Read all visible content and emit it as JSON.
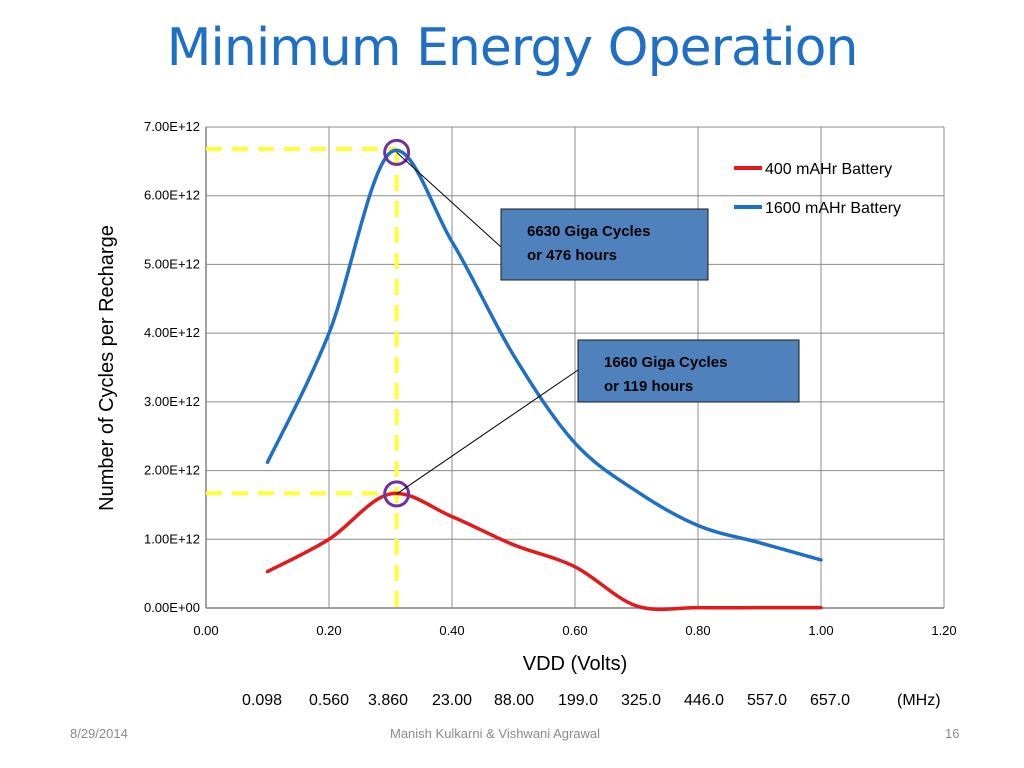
{
  "slide": {
    "title": "Minimum Energy Operation",
    "footer_date": "8/29/2014",
    "footer_authors": "Manish Kulkarni & Vishwani Agrawal",
    "footer_page": "16"
  },
  "frequency_row": {
    "values": [
      "0.098",
      "0.560",
      "3.860",
      "23.00",
      "88.00",
      "199.0",
      "325.0",
      "446.0",
      "557.0",
      "657.0"
    ],
    "unit": "(MHz)"
  },
  "chart_data": {
    "type": "line",
    "title": "",
    "xlabel": "VDD (Volts)",
    "ylabel": "Number of Cycles per Recharge",
    "xlim": [
      0,
      1.2
    ],
    "ylim": [
      0,
      7000000000000.0
    ],
    "x_ticks": [
      "0.00",
      "0.20",
      "0.40",
      "0.60",
      "0.80",
      "1.00",
      "1.20"
    ],
    "y_ticks": [
      "0.00E+00",
      "1.00E+12",
      "2.00E+12",
      "3.00E+12",
      "4.00E+12",
      "5.00E+12",
      "6.00E+12",
      "7.00E+12"
    ],
    "grid": true,
    "legend_position": "top-right",
    "series": [
      {
        "name": "400 mAHr Battery",
        "color": "#e31a1c",
        "x": [
          0.1,
          0.2,
          0.3,
          0.4,
          0.5,
          0.6,
          0.7,
          0.8,
          0.9,
          1.0
        ],
        "y": [
          530000000000.0,
          1000000000000.0,
          1660000000000.0,
          1330000000000.0,
          920000000000.0,
          600000000000.0,
          30000000000.0,
          5000000000.0,
          5000000000.0,
          5000000000.0
        ]
      },
      {
        "name": "1600 mAHr Battery",
        "color": "#1f6fc5",
        "x": [
          0.1,
          0.2,
          0.3,
          0.4,
          0.5,
          0.6,
          0.7,
          0.8,
          0.9,
          1.0
        ],
        "y": [
          2120000000000.0,
          4000000000000.0,
          6630000000000.0,
          5330000000000.0,
          3680000000000.0,
          2400000000000.0,
          1700000000000.0,
          1200000000000.0,
          950000000000.0,
          700000000000.0
        ]
      }
    ],
    "reference_lines": {
      "color": "#ffff33",
      "vertical_x": 0.31,
      "horizontal_y": [
        6680000000000.0,
        1670000000000.0
      ]
    },
    "markers": [
      {
        "x": 0.31,
        "y": 6630000000000.0,
        "color": "#7030a0"
      },
      {
        "x": 0.31,
        "y": 1660000000000.0,
        "color": "#7030a0"
      }
    ],
    "annotations": [
      {
        "line1": "6630 Giga Cycles",
        "line2": "or 476 hours",
        "target_x": 0.31,
        "target_y": 6630000000000.0,
        "fill": "#4f81bd"
      },
      {
        "line1": "1660 Giga Cycles",
        "line2": "or 119 hours",
        "target_x": 0.31,
        "target_y": 1660000000000.0,
        "fill": "#4f81bd"
      }
    ]
  }
}
